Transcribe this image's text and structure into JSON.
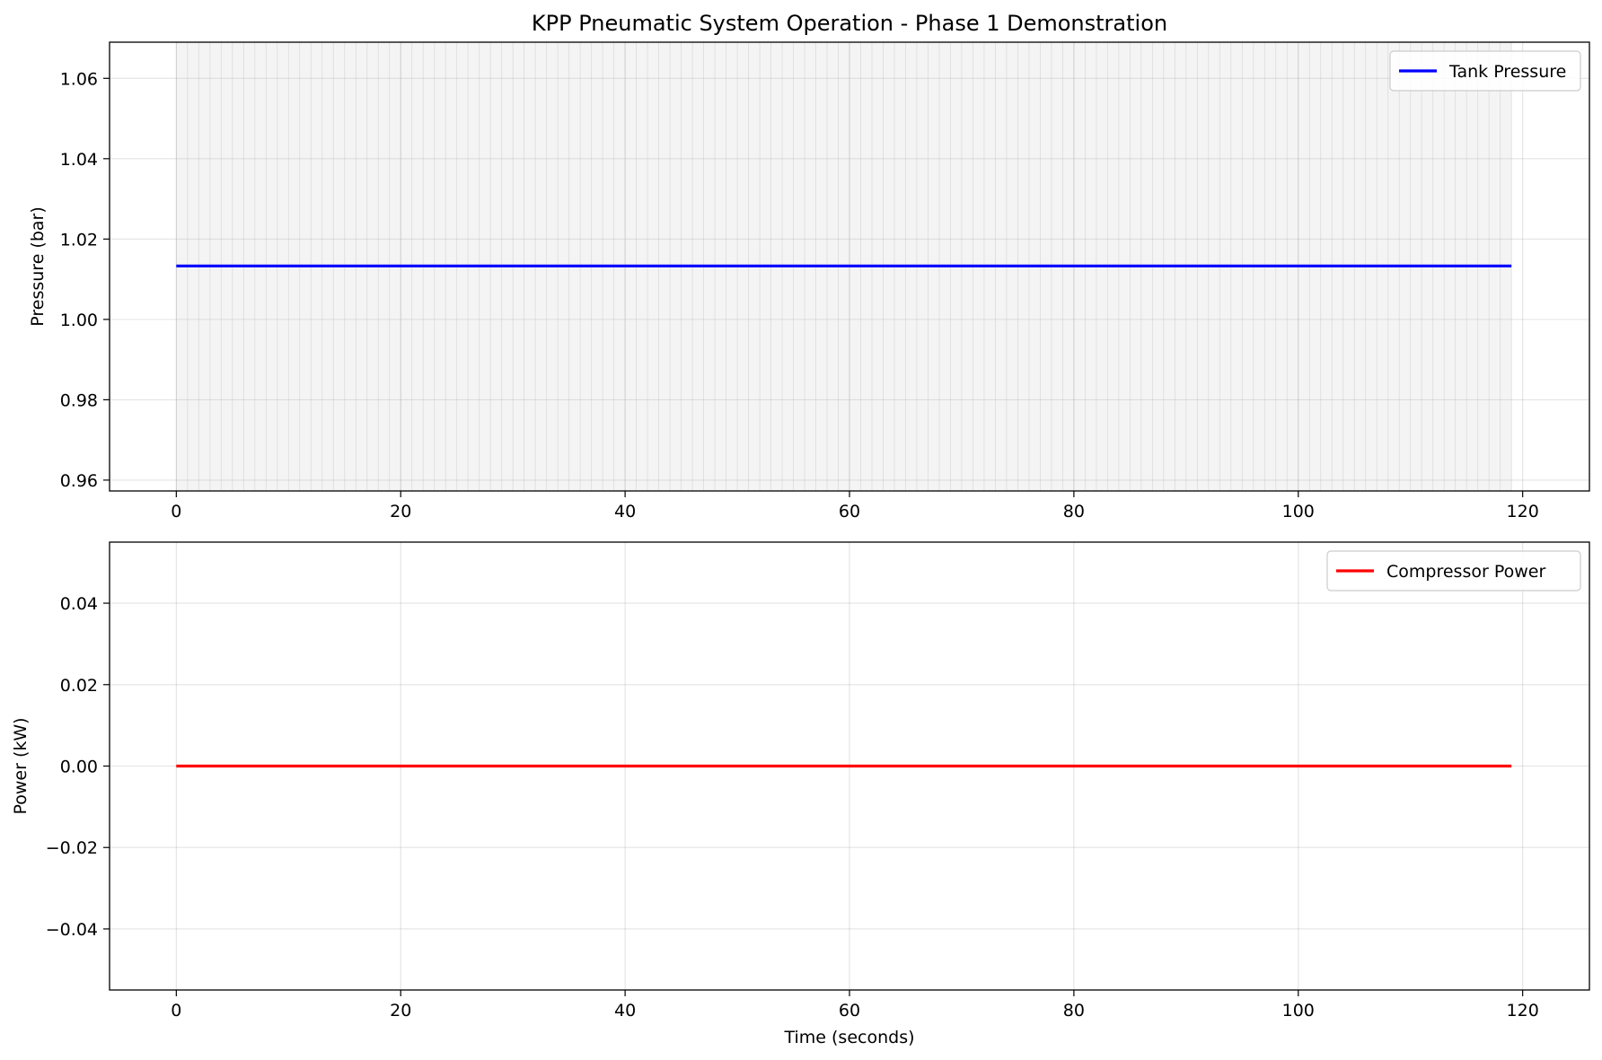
{
  "figure": {
    "title": "KPP Pneumatic System Operation - Phase 1 Demonstration"
  },
  "chart_data": [
    {
      "type": "line",
      "title": "KPP Pneumatic System Operation - Phase 1 Demonstration",
      "xlabel": "",
      "ylabel": "Pressure (bar)",
      "xlim": [
        -5.95,
        125.95
      ],
      "ylim": [
        0.9573,
        1.069
      ],
      "x_ticks": [
        0,
        20,
        40,
        60,
        80,
        100,
        120
      ],
      "x_tick_labels": [
        "0",
        "20",
        "40",
        "60",
        "80",
        "100",
        "120"
      ],
      "y_ticks": [
        0.96,
        0.98,
        1.0,
        1.02,
        1.04,
        1.06
      ],
      "y_tick_labels": [
        "0.96",
        "0.98",
        "1.00",
        "1.02",
        "1.04",
        "1.06"
      ],
      "grid": true,
      "legend_position": "upper right",
      "shaded_band": {
        "x_start": 0,
        "x_end": 119,
        "step": 1,
        "color": "#e8e8e8"
      },
      "series": [
        {
          "name": "Tank Pressure",
          "color": "#0000ff",
          "x": [
            0,
            119
          ],
          "y": [
            1.0133,
            1.0133
          ]
        }
      ]
    },
    {
      "type": "line",
      "title": "",
      "xlabel": "Time (seconds)",
      "ylabel": "Power (kW)",
      "xlim": [
        -5.95,
        125.95
      ],
      "ylim": [
        -0.055,
        0.055
      ],
      "x_ticks": [
        0,
        20,
        40,
        60,
        80,
        100,
        120
      ],
      "x_tick_labels": [
        "0",
        "20",
        "40",
        "60",
        "80",
        "100",
        "120"
      ],
      "y_ticks": [
        -0.04,
        -0.02,
        0.0,
        0.02,
        0.04
      ],
      "y_tick_labels": [
        "−0.04",
        "−0.02",
        "0.00",
        "0.02",
        "0.04"
      ],
      "grid": true,
      "legend_position": "upper right",
      "series": [
        {
          "name": "Compressor Power",
          "color": "#ff0000",
          "x": [
            0,
            119
          ],
          "y": [
            0,
            0
          ]
        }
      ]
    }
  ]
}
